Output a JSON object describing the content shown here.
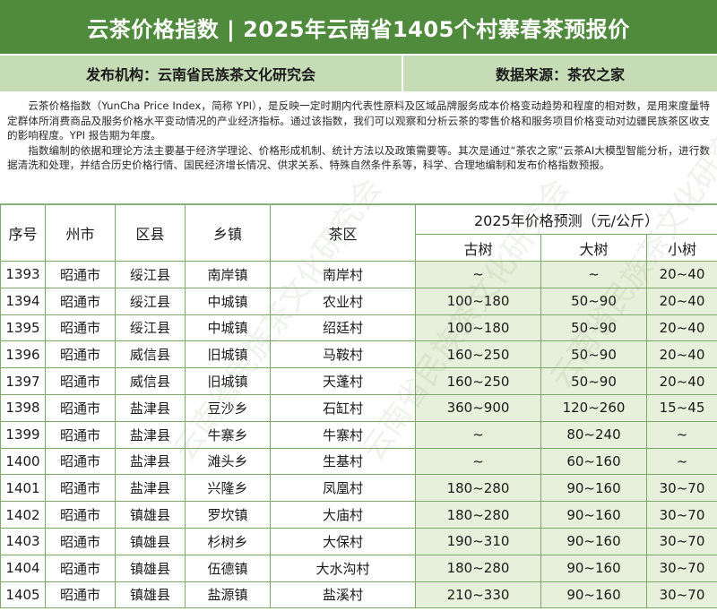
{
  "header": {
    "title": "云茶价格指数 | 2025年云南省1405个村寨春茶预报价",
    "publisher": "发布机构：云南省民族茶文化研究会",
    "source": "数据来源：茶农之家"
  },
  "intro": {
    "para1": "云茶价格指数（YunCha Price Index，简称 YPI），是反映一定时期内代表性原料及区域品牌服务成本价格变动趋势和程度的相对数，是用来度量特定群体所消费商品及服务价格水平变动情况的产业经济指标。通过该指数，我们可以观察和分析云茶的零售价格和服务项目价格变动对边疆民族茶区收支的影响程度。YPI 报告期为年度。",
    "para2": "指数编制的依据和理论方法主要基于经济学理论、价格形成机制、统计方法以及政策需要等。其次是通过“茶农之家”云茶AI大模型智能分析，进行数据清洗和处理，并结合历史价格行情、国民经济增长情况、供求关系、特殊自然条件系等，科学、合理地编制和发布价格指数预报。"
  },
  "watermark": {
    "text": "云南省民族茶文化研究会"
  },
  "table": {
    "headers": {
      "seq": "序号",
      "prefecture": "州市",
      "county": "区县",
      "town": "乡镇",
      "tea_area": "茶区",
      "forecast": "2025年价格预测（元/公斤）",
      "ancient": "古树",
      "large": "大树",
      "small": "小树"
    },
    "rows": [
      {
        "seq": "1393",
        "prefecture": "昭通市",
        "county": "绥江县",
        "town": "南岸镇",
        "area": "南岸村",
        "ancient": "~",
        "large": "~",
        "small": "20~40"
      },
      {
        "seq": "1394",
        "prefecture": "昭通市",
        "county": "绥江县",
        "town": "中城镇",
        "area": "农业村",
        "ancient": "100~180",
        "large": "50~90",
        "small": "20~40"
      },
      {
        "seq": "1395",
        "prefecture": "昭通市",
        "county": "绥江县",
        "town": "中城镇",
        "area": "绍廷村",
        "ancient": "100~180",
        "large": "50~90",
        "small": "20~40"
      },
      {
        "seq": "1396",
        "prefecture": "昭通市",
        "county": "威信县",
        "town": "旧城镇",
        "area": "马鞍村",
        "ancient": "160~250",
        "large": "50~90",
        "small": "20~40"
      },
      {
        "seq": "1397",
        "prefecture": "昭通市",
        "county": "威信县",
        "town": "旧城镇",
        "area": "天蓬村",
        "ancient": "160~250",
        "large": "50~90",
        "small": "20~40"
      },
      {
        "seq": "1398",
        "prefecture": "昭通市",
        "county": "盐津县",
        "town": "豆沙乡",
        "area": "石缸村",
        "ancient": "360~900",
        "large": "120~260",
        "small": "15~45"
      },
      {
        "seq": "1399",
        "prefecture": "昭通市",
        "county": "盐津县",
        "town": "牛寨乡",
        "area": "牛寨村",
        "ancient": "~",
        "large": "80~240",
        "small": "~"
      },
      {
        "seq": "1400",
        "prefecture": "昭通市",
        "county": "盐津县",
        "town": "滩头乡",
        "area": "生基村",
        "ancient": "~",
        "large": "60~160",
        "small": "~"
      },
      {
        "seq": "1401",
        "prefecture": "昭通市",
        "county": "盐津县",
        "town": "兴隆乡",
        "area": "凤凰村",
        "ancient": "180~280",
        "large": "90~160",
        "small": "30~70"
      },
      {
        "seq": "1402",
        "prefecture": "昭通市",
        "county": "镇雄县",
        "town": "罗坎镇",
        "area": "大庙村",
        "ancient": "180~280",
        "large": "90~160",
        "small": "30~70"
      },
      {
        "seq": "1403",
        "prefecture": "昭通市",
        "county": "镇雄县",
        "town": "杉树乡",
        "area": "大保村",
        "ancient": "190~310",
        "large": "90~160",
        "small": "30~70"
      },
      {
        "seq": "1404",
        "prefecture": "昭通市",
        "county": "镇雄县",
        "town": "伍德镇",
        "area": "大水沟村",
        "ancient": "180~280",
        "large": "90~160",
        "small": "30~70"
      },
      {
        "seq": "1405",
        "prefecture": "昭通市",
        "county": "镇雄县",
        "town": "盐源镇",
        "area": "盐溪村",
        "ancient": "210~330",
        "large": "90~160",
        "small": "30~70"
      }
    ]
  }
}
